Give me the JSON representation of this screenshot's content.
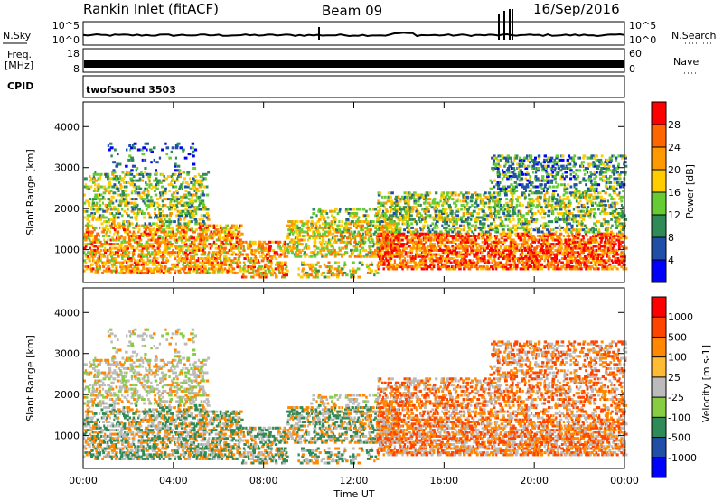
{
  "header": {
    "station": "Rankin Inlet (fitACF)",
    "beam": "Beam 09",
    "date": "16/Sep/2016"
  },
  "strip_labels": {
    "nsky": "N.Sky",
    "nsearch": "N.Search",
    "freq_line1": "Freq.",
    "freq_line2": "[MHz]",
    "nave": "Nave",
    "cpid": "CPID",
    "cpid_value": "twofsound 3503",
    "nsky_ticks": [
      "10^5",
      "10^0"
    ],
    "freq_ticks": [
      "8",
      "18"
    ],
    "nave_ticks": [
      "0",
      "60"
    ]
  },
  "colors": {
    "power": [
      "#0000ff",
      "#1f4fa6",
      "#2e8b57",
      "#66cc33",
      "#ffcc00",
      "#ff9900",
      "#ff6600",
      "#ff0000"
    ],
    "velocity": [
      "#ff0000",
      "#ff4400",
      "#ff8800",
      "#ffbb33",
      "#bbbbbb",
      "#88cc44",
      "#2e8b57",
      "#1f4fa6",
      "#0000ff"
    ]
  },
  "chart_data": [
    {
      "type": "heatmap",
      "title": "",
      "xlabel": "Time UT",
      "ylabel": "Slant Range [km]",
      "xlim": [
        "00:00",
        "24:00"
      ],
      "ylim": [
        200,
        4600
      ],
      "x_ticks": [
        "00:00",
        "04:00",
        "08:00",
        "12:00",
        "16:00",
        "20:00",
        "00:00"
      ],
      "y_ticks": [
        "1000",
        "2000",
        "3000",
        "4000"
      ],
      "colorbar_label": "Power [dB]",
      "colorbar_ticks": [
        "4",
        "8",
        "12",
        "16",
        "20",
        "24",
        "28"
      ],
      "colorbar_range": [
        0,
        32
      ]
    },
    {
      "type": "heatmap",
      "title": "",
      "xlabel": "Time UT",
      "ylabel": "Slant Range [km]",
      "xlim": [
        "00:00",
        "24:00"
      ],
      "ylim": [
        200,
        4600
      ],
      "x_ticks": [
        "00:00",
        "04:00",
        "08:00",
        "12:00",
        "16:00",
        "20:00",
        "00:00"
      ],
      "y_ticks": [
        "1000",
        "2000",
        "3000",
        "4000"
      ],
      "colorbar_label": "Velocity [m s-1]",
      "colorbar_ticks": [
        "1000",
        "500",
        "100",
        "25",
        "-25",
        "-100",
        "-500",
        "-1000"
      ]
    }
  ]
}
